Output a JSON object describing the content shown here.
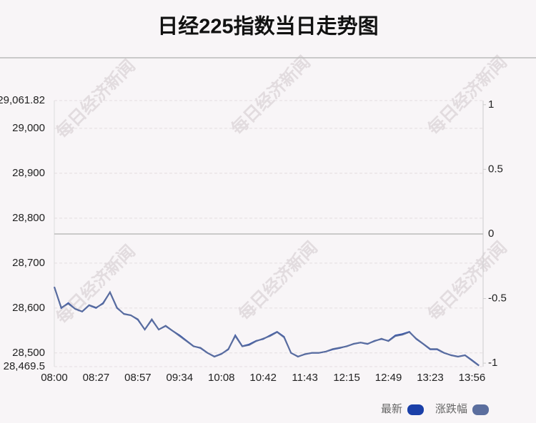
{
  "chart_data": {
    "type": "line",
    "title": "日经225指数当日走势图",
    "watermark": "每日经济新闻",
    "categories": [
      "08:00",
      null,
      null,
      null,
      null,
      null,
      "08:27",
      null,
      null,
      null,
      null,
      null,
      "08:57",
      null,
      null,
      null,
      null,
      null,
      "09:34",
      null,
      null,
      null,
      null,
      null,
      "10:08",
      null,
      null,
      null,
      null,
      null,
      "10:42",
      null,
      null,
      null,
      null,
      null,
      "11:43",
      null,
      null,
      null,
      null,
      null,
      "12:15",
      null,
      null,
      null,
      null,
      null,
      "12:49",
      null,
      null,
      null,
      null,
      null,
      "13:23",
      null,
      null,
      null,
      null,
      null,
      "13:56",
      null
    ],
    "series": [
      {
        "name": "最新",
        "color": "#1a3fa8",
        "values": [
          28647,
          28600,
          28611,
          28598,
          28592,
          28606,
          28600,
          28611,
          28635,
          28600,
          28587,
          28584,
          28574,
          28552,
          28574,
          28552,
          28560,
          28549,
          28539,
          28527,
          28515,
          28511,
          28500,
          28492,
          28498,
          28508,
          28539,
          28515,
          28519,
          28527,
          28531,
          28539,
          28547,
          28536,
          28500,
          28492,
          28497,
          28500,
          28500,
          28503,
          28508,
          28511,
          28515,
          28520,
          28523,
          28520,
          28527,
          28531,
          28527,
          28539,
          28542,
          28547,
          28531,
          28520,
          28508,
          28508,
          28500,
          28495,
          28492,
          28495,
          28484,
          28472
        ]
      },
      {
        "name": "涨跌幅",
        "color": "#5b6e9e",
        "axis": "y2",
        "values": [
          -0.41,
          -0.57,
          -0.54,
          -0.58,
          -0.6,
          -0.55,
          -0.57,
          -0.54,
          -0.45,
          -0.57,
          -0.62,
          -0.63,
          -0.66,
          -0.74,
          -0.66,
          -0.74,
          -0.71,
          -0.75,
          -0.79,
          -0.83,
          -0.87,
          -0.88,
          -0.92,
          -0.95,
          -0.93,
          -0.89,
          -0.79,
          -0.87,
          -0.86,
          -0.83,
          -0.81,
          -0.79,
          -0.76,
          -0.8,
          -0.92,
          -0.95,
          -0.93,
          -0.92,
          -0.92,
          -0.91,
          -0.89,
          -0.88,
          -0.87,
          -0.85,
          -0.84,
          -0.85,
          -0.83,
          -0.81,
          -0.83,
          -0.79,
          -0.78,
          -0.76,
          -0.81,
          -0.85,
          -0.89,
          -0.89,
          -0.92,
          -0.94,
          -0.95,
          -0.94,
          -0.98,
          -1.02
        ]
      }
    ],
    "ylim": [
      28469.5,
      29061.82
    ],
    "yticks": [
      {
        "value": 28469.5,
        "label": "28,469.5"
      },
      {
        "value": 28500,
        "label": "28,500"
      },
      {
        "value": 28600,
        "label": "28,600"
      },
      {
        "value": 28700,
        "label": "28,700"
      },
      {
        "value": 28800,
        "label": "28,800"
      },
      {
        "value": 28900,
        "label": "28,900"
      },
      {
        "value": 29000,
        "label": "29,000"
      },
      {
        "value": 29061.82,
        "label": "29,061.82"
      }
    ],
    "y2lim": [
      -1.027,
      1.032
    ],
    "y2ticks": [
      -1,
      -0.5,
      0,
      0.5,
      1
    ],
    "grid": true
  }
}
